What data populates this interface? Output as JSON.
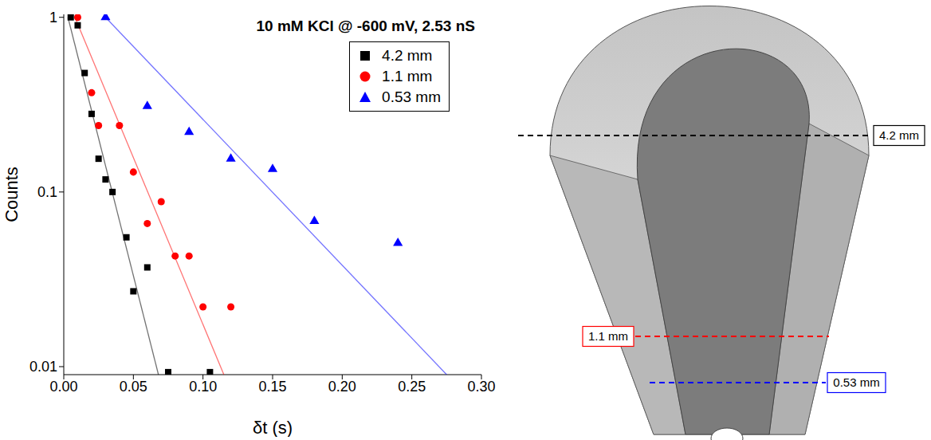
{
  "chart_data": {
    "type": "scatter",
    "title": "10 mM KCl @ -600 mV, 2.53 nS",
    "x_label": "δt (s)",
    "y_label": "Counts",
    "log": "y",
    "xlim": [
      0,
      0.3
    ],
    "xticks": [
      {
        "value": 0,
        "label": "0.00"
      },
      0.05,
      {
        "value": 0.1,
        "label": "0.10"
      },
      0.15,
      {
        "value": 0.2,
        "label": "0.20"
      },
      0.25,
      {
        "value": 0.3,
        "label": "0.30"
      }
    ],
    "ylim": [
      0.009,
      1.04
    ],
    "yticks": [
      0.01,
      0.1,
      1
    ],
    "legend": "upper right",
    "series": [
      {
        "name": "4.2 mm",
        "color": "#000000",
        "marker": "square",
        "x": [
          0.005,
          0.01,
          0.015,
          0.02,
          0.025,
          0.03,
          0.035,
          0.045,
          0.05,
          0.06,
          0.075,
          0.105
        ],
        "values": [
          1,
          0.9,
          0.48,
          0.28,
          0.155,
          0.118,
          0.1,
          0.055,
          0.027,
          0.037,
          0.0093,
          0.0093
        ],
        "fit": {
          "x": [
            0.003,
            0.068
          ],
          "values": [
            1,
            0.009
          ]
        }
      },
      {
        "name": "1.1 mm",
        "color": "#ff0000",
        "marker": "circle",
        "x": [
          0.01,
          0.02,
          0.025,
          0.04,
          0.05,
          0.06,
          0.07,
          0.08,
          0.09,
          0.1,
          0.12
        ],
        "values": [
          1,
          0.37,
          0.24,
          0.24,
          0.13,
          0.066,
          0.088,
          0.043,
          0.043,
          0.022,
          0.022
        ],
        "fit": {
          "x": [
            0.008,
            0.115
          ],
          "values": [
            1,
            0.009
          ]
        }
      },
      {
        "name": "0.53 mm",
        "color": "#0000ff",
        "marker": "triangle",
        "x": [
          0.03,
          0.06,
          0.09,
          0.12,
          0.15,
          0.18,
          0.24
        ],
        "values": [
          1,
          0.31,
          0.22,
          0.155,
          0.135,
          0.068,
          0.051
        ],
        "fit": {
          "x": [
            0.03,
            0.275
          ],
          "values": [
            1,
            0.009
          ]
        }
      }
    ]
  },
  "diagram": {
    "sections": [
      {
        "label": "4.2 mm",
        "color": "#000000"
      },
      {
        "label": "1.1 mm",
        "color": "#ff0000"
      },
      {
        "label": "0.53 mm",
        "color": "#0000ff"
      }
    ]
  }
}
